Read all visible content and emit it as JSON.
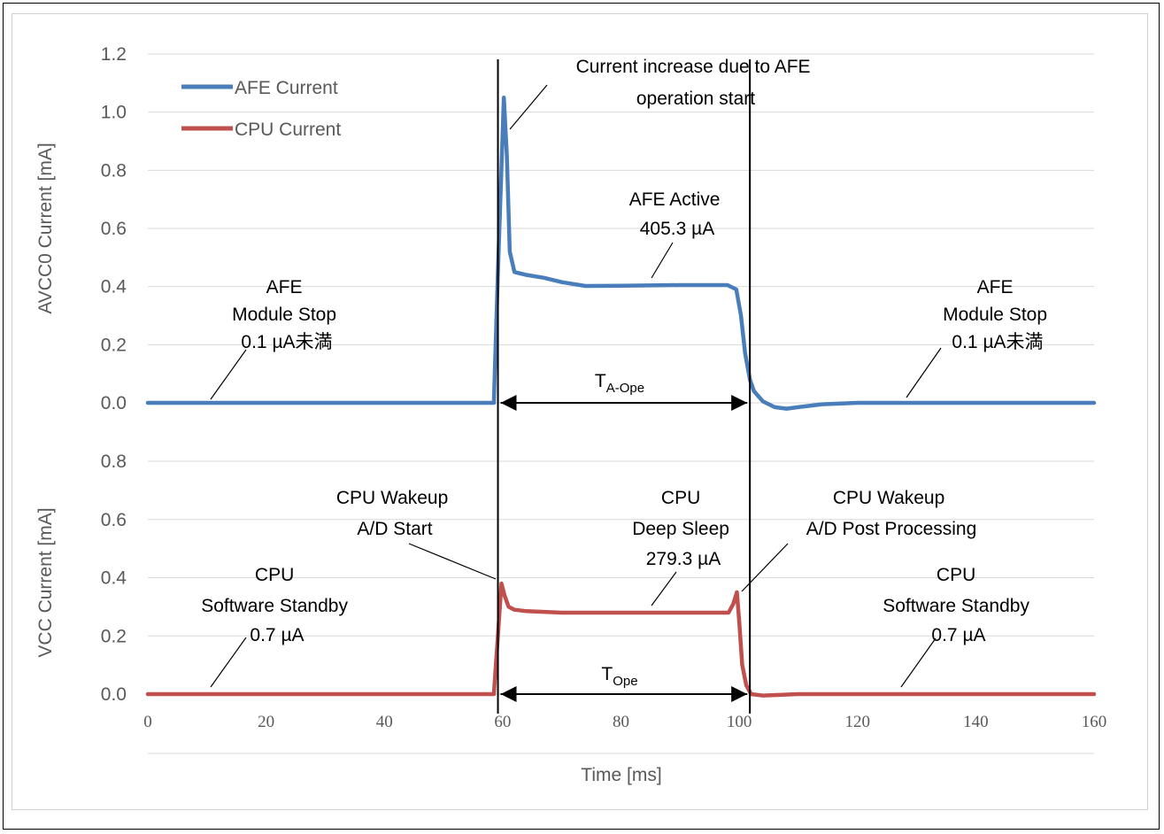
{
  "chart_data": {
    "type": "line",
    "xlabel": "Time [ms]",
    "ylabel_top": "AVCC0 Current [mA]",
    "ylabel_bottom": "VCC Current [mA]",
    "xlim": [
      0,
      160
    ],
    "x_ticks": [
      "0",
      "20",
      "40",
      "60",
      "80",
      "100",
      "120",
      "140",
      "160"
    ],
    "top_ylim": [
      0,
      1.2
    ],
    "top_y_ticks": [
      "0.0",
      "0.2",
      "0.4",
      "0.6",
      "0.8",
      "1.0",
      "1.2"
    ],
    "bottom_ylim": [
      0,
      0.8
    ],
    "bottom_y_ticks": [
      "0.0",
      "0.2",
      "0.4",
      "0.6",
      "0.8"
    ],
    "grid": true,
    "legend_position": "top-left",
    "series": [
      {
        "name": "AFE Current",
        "panel": "top",
        "color": "#4a7ebb",
        "x": [
          0,
          20,
          40,
          58.5,
          59.2,
          60.2,
          60.7,
          61.2,
          62,
          64,
          67,
          70,
          74,
          80,
          90,
          98,
          99.5,
          100.3,
          101,
          101.8,
          102.5,
          104,
          106,
          108,
          110,
          114,
          120,
          140,
          160
        ],
        "y": [
          0,
          0,
          0,
          0,
          0.45,
          1.05,
          0.85,
          0.52,
          0.45,
          0.44,
          0.43,
          0.415,
          0.402,
          0.403,
          0.405,
          0.405,
          0.39,
          0.3,
          0.17,
          0.08,
          0.04,
          0.005,
          -0.015,
          -0.02,
          -0.015,
          -0.005,
          0,
          0,
          0
        ]
      },
      {
        "name": "CPU Current",
        "panel": "bottom",
        "color": "#c0504d",
        "x": [
          0,
          20,
          40,
          58.5,
          59.2,
          59.8,
          60.3,
          61,
          62,
          64,
          70,
          80,
          90,
          98.2,
          99,
          99.6,
          100,
          100.5,
          101.2,
          102,
          104,
          110,
          120,
          140,
          160
        ],
        "y": [
          0,
          0,
          0,
          0,
          0.2,
          0.38,
          0.34,
          0.3,
          0.29,
          0.285,
          0.28,
          0.28,
          0.28,
          0.28,
          0.31,
          0.35,
          0.25,
          0.1,
          0.03,
          0,
          -0.005,
          0,
          0,
          0,
          0
        ]
      }
    ],
    "vertical_lines_x": [
      59.2,
      101.8
    ],
    "intervals": [
      {
        "panel": "top",
        "from": 59.2,
        "to": 101.8,
        "at": 0,
        "label_main": "T",
        "label_sub": "A-Ope"
      },
      {
        "panel": "bottom",
        "from": 59.2,
        "to": 101.8,
        "at": 0,
        "label_main": "T",
        "label_sub": "Ope"
      }
    ],
    "annotations": [
      {
        "id": "ann-afe-spike",
        "lines": [
          "Current increase due to AFE",
          "operation start"
        ]
      },
      {
        "id": "ann-afe-active",
        "lines": [
          "AFE Active",
          "405.3 µA"
        ]
      },
      {
        "id": "ann-afe-stop-left",
        "lines": [
          "AFE",
          "Module Stop",
          "0.1 µA未満"
        ]
      },
      {
        "id": "ann-afe-stop-right",
        "lines": [
          "AFE",
          "Module Stop",
          "0.1 µA未満"
        ]
      },
      {
        "id": "ann-cpu-wake-start",
        "lines": [
          "CPU Wakeup",
          "A/D Start"
        ]
      },
      {
        "id": "ann-cpu-deep-sleep",
        "lines": [
          "CPU",
          "Deep Sleep",
          "279.3 µA"
        ]
      },
      {
        "id": "ann-cpu-wake-post",
        "lines": [
          "CPU Wakeup",
          "A/D Post Processing"
        ]
      },
      {
        "id": "ann-cpu-standby-left",
        "lines": [
          "CPU",
          "Software Standby",
          "0.7 µA"
        ]
      },
      {
        "id": "ann-cpu-standby-right",
        "lines": [
          "CPU",
          "Software Standby",
          "0.7 µA"
        ]
      }
    ]
  }
}
